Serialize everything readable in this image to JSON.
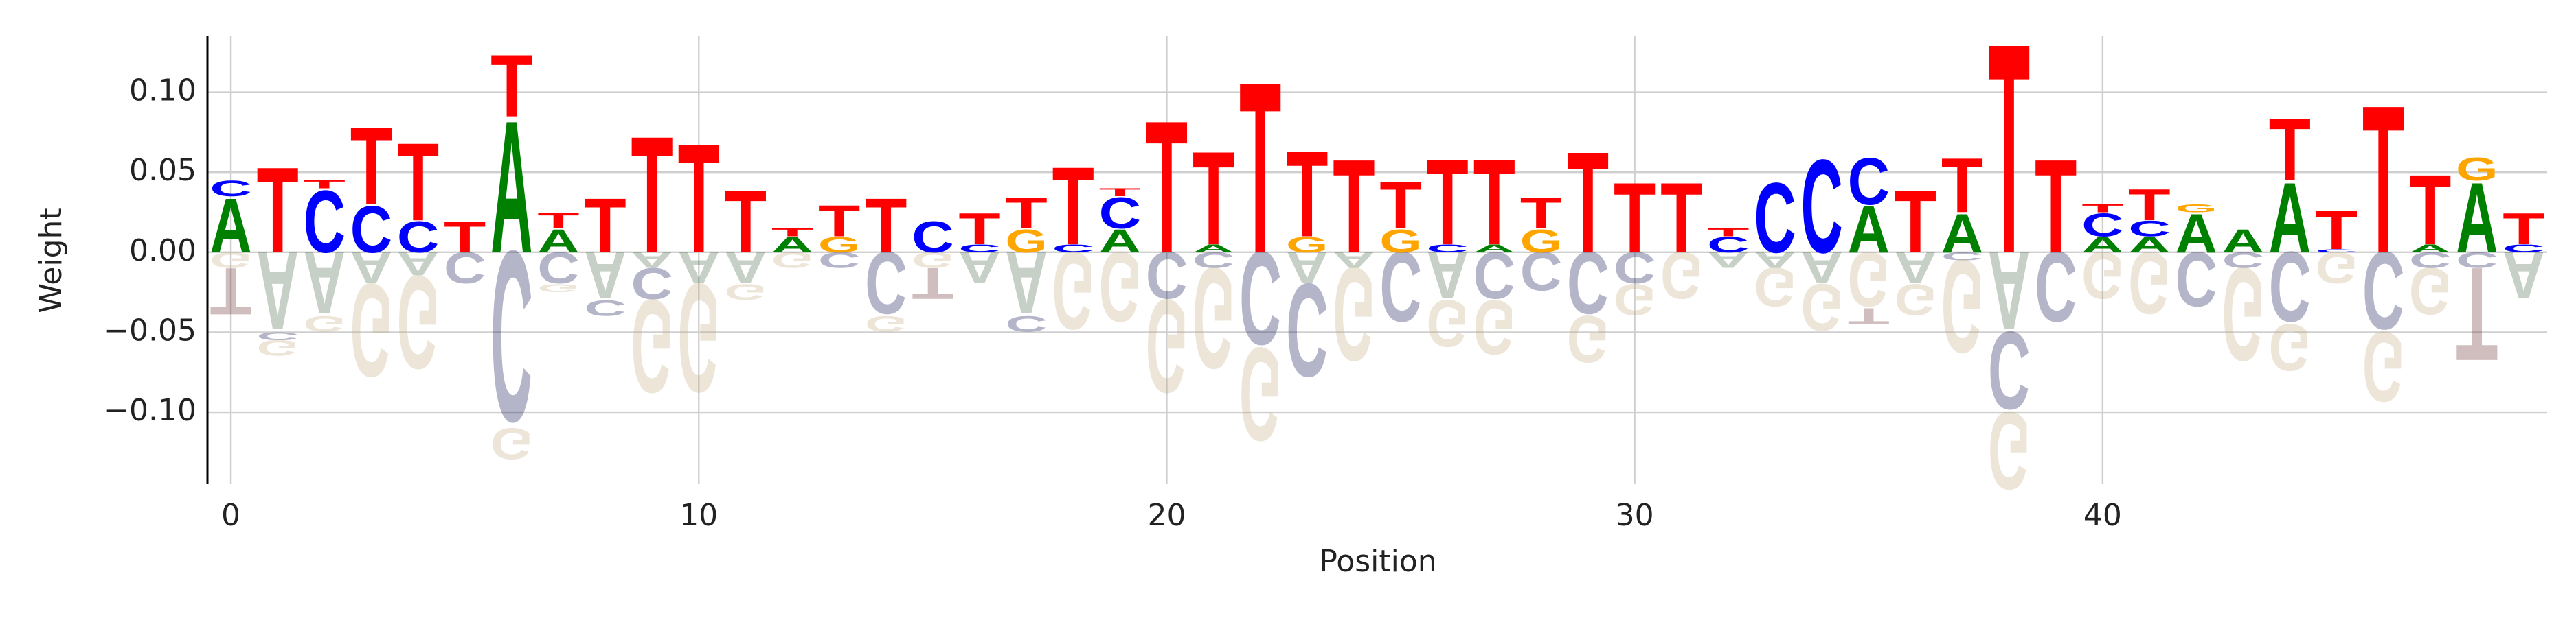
{
  "chart_data": {
    "type": "logo",
    "xlabel": "Position",
    "ylabel": "Weight",
    "x": [
      0,
      1,
      2,
      3,
      4,
      5,
      6,
      7,
      8,
      9,
      10,
      11,
      12,
      13,
      14,
      15,
      16,
      17,
      18,
      19,
      20,
      21,
      22,
      23,
      24,
      25,
      26,
      27,
      28,
      29,
      30,
      31,
      32,
      33,
      34,
      35,
      36,
      37,
      38,
      39,
      40,
      41,
      42,
      43,
      44,
      45,
      46,
      47,
      48,
      49
    ],
    "xlim": [
      -0.5,
      49.5
    ],
    "xticks": [
      0,
      10,
      20,
      30,
      40
    ],
    "ylim": [
      -0.145,
      0.135
    ],
    "yticks": [
      {
        "value": -0.1,
        "label": "−0.10"
      },
      {
        "value": -0.05,
        "label": "−0.05"
      },
      {
        "value": 0,
        "label": "0.00"
      },
      0.05,
      {
        "value": 0.1,
        "label": "0.10"
      }
    ],
    "grid": true,
    "series": [
      {
        "name": "A",
        "color": "#008000",
        "values": [
          0.035,
          -0.05,
          -0.04,
          -0.02,
          -0.015,
          0,
          0.085,
          0.015,
          -0.03,
          -0.01,
          -0.02,
          -0.02,
          0.01,
          0,
          0,
          0,
          -0.02,
          -0.04,
          0,
          0.015,
          0,
          0.005,
          0,
          -0.02,
          -0.01,
          0,
          -0.03,
          0.005,
          0,
          0,
          0,
          0,
          -0.01,
          -0.01,
          -0.02,
          0.03,
          -0.02,
          0.025,
          -0.05,
          0,
          0.01,
          0.01,
          0.025,
          0.015,
          0.045,
          0,
          0,
          0.005,
          0.045,
          -0.03
        ]
      },
      {
        "name": "C",
        "color": "#0000ff",
        "values": [
          0.01,
          -0.005,
          0.04,
          0.03,
          0.02,
          -0.02,
          -0.11,
          -0.02,
          -0.01,
          -0.02,
          0,
          0,
          0,
          -0.01,
          -0.04,
          0.02,
          0.005,
          -0.01,
          0.005,
          0.02,
          -0.03,
          -0.01,
          -0.06,
          -0.06,
          0,
          -0.045,
          0.005,
          -0.03,
          -0.025,
          -0.04,
          -0.02,
          0,
          0.01,
          0.045,
          0.06,
          0.03,
          0,
          -0.005,
          -0.05,
          -0.045,
          0.015,
          0.01,
          -0.035,
          -0.01,
          -0.045,
          0.002,
          -0.05,
          -0.01,
          -0.01,
          0.005
        ]
      },
      {
        "name": "G",
        "color": "#ffa500",
        "values": [
          -0.01,
          -0.01,
          -0.01,
          -0.06,
          -0.06,
          0,
          -0.02,
          -0.005,
          0,
          -0.06,
          -0.07,
          -0.01,
          -0.01,
          0.01,
          -0.01,
          -0.01,
          0,
          0.015,
          -0.05,
          -0.045,
          -0.06,
          -0.065,
          -0.06,
          0.01,
          -0.06,
          0.015,
          -0.03,
          -0.035,
          0.015,
          -0.03,
          -0.02,
          -0.03,
          0,
          -0.025,
          -0.03,
          -0.035,
          -0.02,
          -0.06,
          -0.05,
          0,
          -0.03,
          -0.04,
          0.005,
          -0.06,
          -0.03,
          -0.02,
          -0.045,
          -0.03,
          0.015,
          0
        ]
      },
      {
        "name": "T",
        "color": "#ff0000",
        "values": [
          -0.03,
          0.055,
          0.005,
          0.05,
          0.05,
          0.02,
          0.04,
          0.01,
          0.035,
          0.075,
          0.07,
          0.04,
          0.005,
          0.02,
          0.035,
          -0.02,
          0.02,
          0.02,
          0.05,
          0.005,
          0.085,
          0.06,
          0.11,
          0.055,
          0.06,
          0.03,
          0.055,
          0.055,
          0.02,
          0.065,
          0.045,
          0.045,
          0.005,
          0,
          0,
          -0.01,
          0.04,
          0.035,
          0.135,
          0.06,
          0.005,
          0.02,
          0,
          0,
          0.04,
          0.025,
          0.095,
          0.045,
          -0.06,
          0.02
        ]
      }
    ]
  }
}
